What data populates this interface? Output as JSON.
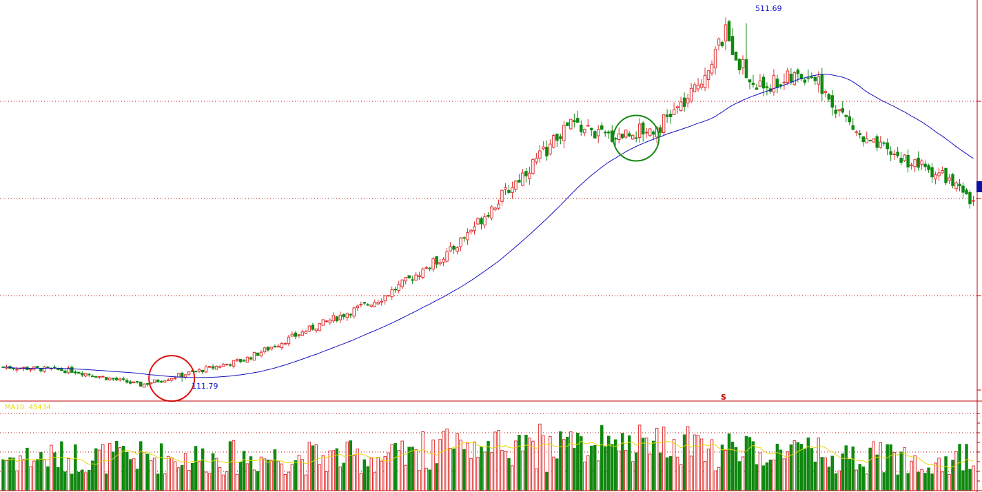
{
  "chart_data": {
    "type": "candlestick",
    "price_panel": {
      "high_annotation": "511.69",
      "low_annotation": "111.79",
      "signal_marker": "S",
      "ylim": [
        90,
        530
      ],
      "ma_line_color": "#1010c0",
      "up_color": "#e03030",
      "down_color": "#118811",
      "highlight_up_circle_index": 49,
      "highlight_down_circle_index": 184,
      "candles": []
    },
    "volume_panel": {
      "ma_label": "MA10: 45434",
      "ma_line_color": "#e8d800",
      "ylim": [
        0,
        100
      ],
      "volumes": []
    }
  }
}
